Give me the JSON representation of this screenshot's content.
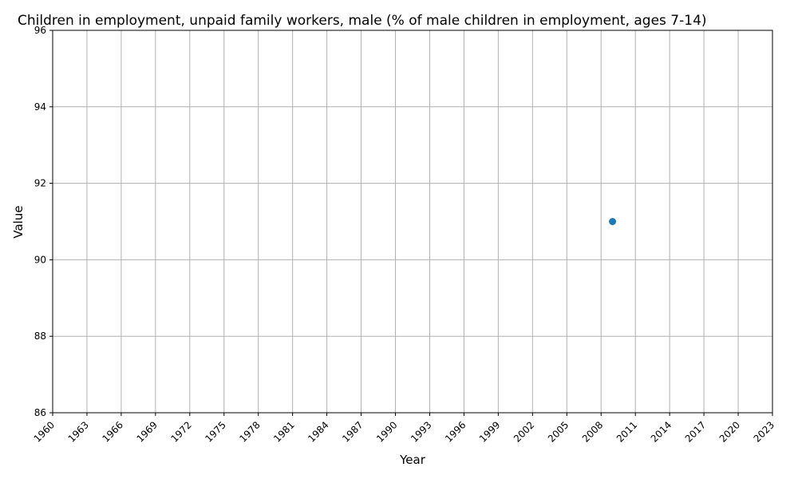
{
  "chart_data": {
    "type": "scatter",
    "title": "Children in employment, unpaid family workers, male (% of male children in employment, ages 7-14)",
    "xlabel": "Year",
    "ylabel": "Value",
    "xlim": [
      1960,
      2023
    ],
    "ylim": [
      86,
      96
    ],
    "x_ticks": [
      1960,
      1963,
      1966,
      1969,
      1972,
      1975,
      1978,
      1981,
      1984,
      1987,
      1990,
      1993,
      1996,
      1999,
      2002,
      2005,
      2008,
      2011,
      2014,
      2017,
      2020,
      2023
    ],
    "y_ticks": [
      86,
      88,
      90,
      92,
      94,
      96
    ],
    "grid": true,
    "series": [
      {
        "color": "#1f77b4",
        "points": [
          {
            "x": 2009,
            "y": 91
          }
        ]
      }
    ]
  }
}
